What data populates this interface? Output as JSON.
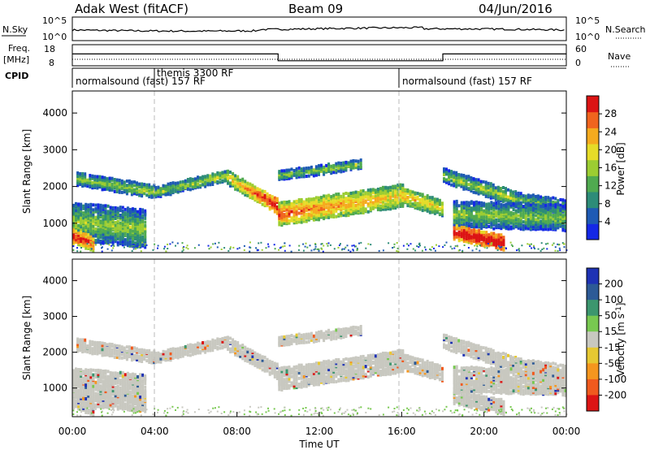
{
  "header": {
    "title": "Adak West (fitACF)",
    "beam": "Beam 09",
    "date": "04/Jun/2016"
  },
  "top_panels": {
    "nsky": {
      "label": "N.Sky",
      "tick_top": "10^5",
      "tick_bottom": "10^0",
      "right_label": "N.Search",
      "right_tick_top": "10^5",
      "right_tick_bottom": "10^0"
    },
    "freq": {
      "label_1": "Freq.",
      "label_2": "[MHz]",
      "ticks": [
        "18",
        "8"
      ],
      "right_label": "Nave",
      "right_ticks": [
        "60",
        "0"
      ],
      "changes": [
        {
          "start_h": 0,
          "end_h": 10,
          "freq": 13.6
        },
        {
          "start_h": 10,
          "end_h": 18,
          "freq": 10.4
        },
        {
          "start_h": 18,
          "end_h": 24,
          "freq": 13.6
        }
      ]
    },
    "cpid": {
      "label": "CPID",
      "segments": [
        {
          "start_h": 0,
          "text": "normalsound (fast) 157 RF"
        },
        {
          "start_h": 4,
          "text": "themis 3300 RF"
        },
        {
          "start_h": 16,
          "text": "normalsound (fast) 157 RF"
        }
      ]
    }
  },
  "chart_data": [
    {
      "type": "heatmap",
      "name": "power",
      "ylabel": "Slant Range [km]",
      "ylim": [
        200,
        4600
      ],
      "yticks": [
        1000,
        2000,
        3000,
        4000
      ],
      "xlim": [
        0,
        24
      ],
      "colorbar": {
        "label": "Power [dB]",
        "range": [
          0,
          32
        ],
        "ticks": [
          4,
          8,
          12,
          16,
          20,
          24,
          28
        ],
        "colors": [
          "#1428e6",
          "#1e5ab4",
          "#2d8c78",
          "#50aa50",
          "#9ccd32",
          "#e6dc28",
          "#f5aa1e",
          "#f0641e",
          "#dc1414"
        ]
      },
      "echo_bands": [
        {
          "start_h": 0.2,
          "end_h": 4.0,
          "center_km": [
            2250,
            1900
          ],
          "width_km": 160,
          "power": [
            10,
            12
          ]
        },
        {
          "start_h": 4.0,
          "end_h": 7.5,
          "center_km": [
            1900,
            2350
          ],
          "width_km": 150,
          "power": [
            10,
            12
          ]
        },
        {
          "start_h": 7.5,
          "end_h": 10.0,
          "center_km": [
            2300,
            1500
          ],
          "width_km": 200,
          "power": [
            14,
            28
          ]
        },
        {
          "start_h": 10.0,
          "end_h": 16.0,
          "center_km": [
            1300,
            1800
          ],
          "width_km": 300,
          "power": [
            22,
            16
          ]
        },
        {
          "start_h": 16.0,
          "end_h": 18.0,
          "center_km": [
            1800,
            1450
          ],
          "width_km": 220,
          "power": [
            18,
            14
          ]
        },
        {
          "start_h": 10.0,
          "end_h": 14.0,
          "center_km": [
            2350,
            2650
          ],
          "width_km": 120,
          "power": [
            9,
            11
          ]
        },
        {
          "start_h": 18.0,
          "end_h": 21.5,
          "center_km": [
            2350,
            1700
          ],
          "width_km": 180,
          "power": [
            10,
            12
          ]
        },
        {
          "start_h": 21.5,
          "end_h": 24.0,
          "center_km": [
            1700,
            1500
          ],
          "width_km": 200,
          "power": [
            8,
            8
          ]
        },
        {
          "start_h": 0.0,
          "end_h": 3.5,
          "center_km": [
            1100,
            900
          ],
          "width_km": 500,
          "power": [
            10,
            10
          ]
        },
        {
          "start_h": 18.5,
          "end_h": 24.0,
          "center_km": [
            1300,
            1200
          ],
          "width_km": 350,
          "power": [
            10,
            9
          ]
        },
        {
          "start_h": 18.5,
          "end_h": 21.0,
          "center_km": [
            800,
            500
          ],
          "width_km": 180,
          "power": [
            28,
            30
          ]
        },
        {
          "start_h": 0.0,
          "end_h": 1.0,
          "center_km": [
            700,
            500
          ],
          "width_km": 200,
          "power": [
            26,
            22
          ]
        }
      ]
    },
    {
      "type": "heatmap",
      "name": "velocity",
      "ylabel": "Slant Range [km]",
      "xlabel": "Time UT",
      "ylim": [
        200,
        4600
      ],
      "yticks": [
        1000,
        2000,
        3000,
        4000
      ],
      "xlim": [
        0,
        24
      ],
      "xticks": [
        "00:00",
        "04:00",
        "08:00",
        "12:00",
        "16:00",
        "20:00",
        "00:00"
      ],
      "colorbar": {
        "label": "Velocity [m s",
        "label_sup": "-1",
        "label_end": "]",
        "ticks": [
          "200",
          "100",
          "50",
          "15",
          "-15",
          "-50",
          "-100",
          "-200"
        ],
        "colors": [
          "#1e32b4",
          "#2d5a96",
          "#3c966e",
          "#78c850",
          "#c8c8c0",
          "#e6c832",
          "#f5961e",
          "#f05a1e",
          "#dc1414"
        ]
      },
      "dominant_velocity": "-15 to 15"
    }
  ]
}
